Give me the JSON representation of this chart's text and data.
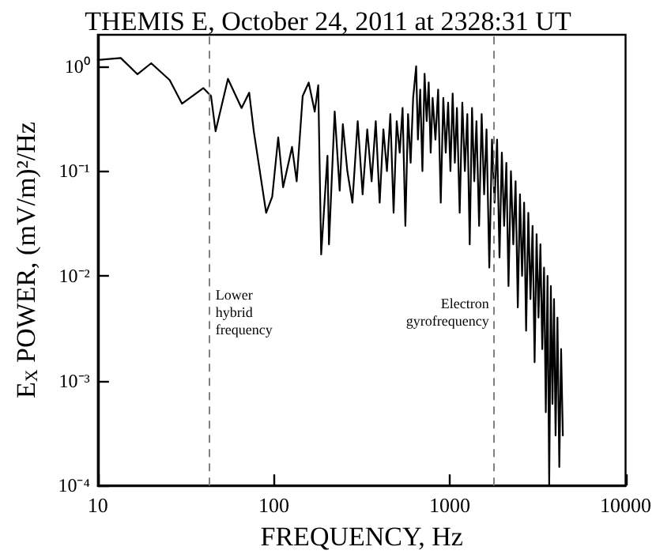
{
  "chart_data": {
    "type": "line",
    "title": "THEMIS E, October 24, 2011 at 2328:31 UT",
    "xlabel": "FREQUENCY, Hz",
    "ylabel": "E$_{X}$ POWER, (mV/m)²/Hz",
    "log": "xy",
    "grid": false,
    "marker": "none",
    "line_style": "solid",
    "xlim": [
      10,
      10000
    ],
    "xticks": [
      10,
      100,
      1000,
      10000
    ],
    "ylim": [
      0.0001,
      2
    ],
    "yticks": [
      {
        "value": 0.0001,
        "label": "10⁻⁴"
      },
      {
        "value": 0.001,
        "label": "10⁻³"
      },
      {
        "value": 0.01,
        "label": "10⁻²"
      },
      {
        "value": 0.1,
        "label": "10⁻¹"
      },
      {
        "value": 1,
        "label": "10⁰"
      }
    ],
    "ref_lines": [
      {
        "axis": "x",
        "value": 43,
        "label": "Lower\nhybrid\nfrequency",
        "color": "#808080",
        "line_style": "dashed"
      },
      {
        "axis": "x",
        "value": 1780,
        "label": "Electron\ngyrofrequency",
        "color": "#808080",
        "line_style": "dashed"
      }
    ],
    "series": [
      {
        "color": "#000000",
        "x": [
          10,
          13.5,
          16.8,
          20.1,
          25.6,
          30.1,
          39.8,
          44,
          46.7,
          54.9,
          65.6,
          72.5,
          77,
          90.5,
          98,
          106,
          113,
          127,
          135,
          146,
          158,
          171,
          179,
          186,
          202,
          206,
          222,
          237,
          247,
          262,
          280,
          300,
          320,
          340,
          360,
          380,
          400,
          420,
          440,
          460,
          480,
          500,
          520,
          540,
          560,
          580,
          600,
          620,
          645,
          660,
          680,
          700,
          720,
          740,
          760,
          780,
          800,
          830,
          860,
          890,
          920,
          950,
          980,
          1010,
          1040,
          1070,
          1100,
          1140,
          1180,
          1220,
          1260,
          1300,
          1340,
          1380,
          1420,
          1470,
          1520,
          1570,
          1620,
          1680,
          1740,
          1800,
          1860,
          1920,
          1980,
          2040,
          2100,
          2160,
          2230,
          2300,
          2370,
          2440,
          2510,
          2580,
          2650,
          2720,
          2800,
          2880,
          2960,
          3040,
          3120,
          3200,
          3280,
          3360,
          3440,
          3520,
          3600,
          3680,
          3760,
          3840,
          3920,
          4000,
          4100,
          4200,
          4300,
          4400
        ],
        "values": [
          1.15,
          1.2,
          0.84,
          1.07,
          0.74,
          0.44,
          0.62,
          0.52,
          0.24,
          0.76,
          0.4,
          0.56,
          0.24,
          0.04,
          0.057,
          0.21,
          0.07,
          0.17,
          0.08,
          0.52,
          0.7,
          0.37,
          0.66,
          0.016,
          0.14,
          0.02,
          0.37,
          0.065,
          0.28,
          0.1,
          0.05,
          0.3,
          0.06,
          0.25,
          0.08,
          0.3,
          0.05,
          0.25,
          0.1,
          0.35,
          0.04,
          0.3,
          0.15,
          0.4,
          0.03,
          0.35,
          0.12,
          0.5,
          1.0,
          0.2,
          0.6,
          0.1,
          0.85,
          0.3,
          0.7,
          0.15,
          0.5,
          0.2,
          0.6,
          0.05,
          0.5,
          0.15,
          0.45,
          0.1,
          0.55,
          0.12,
          0.4,
          0.04,
          0.45,
          0.1,
          0.35,
          0.02,
          0.4,
          0.08,
          0.3,
          0.03,
          0.35,
          0.06,
          0.25,
          0.012,
          0.2,
          0.05,
          0.2,
          0.015,
          0.15,
          0.03,
          0.12,
          0.008,
          0.1,
          0.02,
          0.08,
          0.005,
          0.06,
          0.01,
          0.05,
          0.003,
          0.04,
          0.006,
          0.03,
          0.0015,
          0.025,
          0.004,
          0.02,
          0.002,
          0.012,
          0.0005,
          0.01,
          0.0001,
          0.008,
          0.0006,
          0.006,
          0.0003,
          0.004,
          0.00015,
          0.002,
          0.0003
        ]
      }
    ]
  }
}
